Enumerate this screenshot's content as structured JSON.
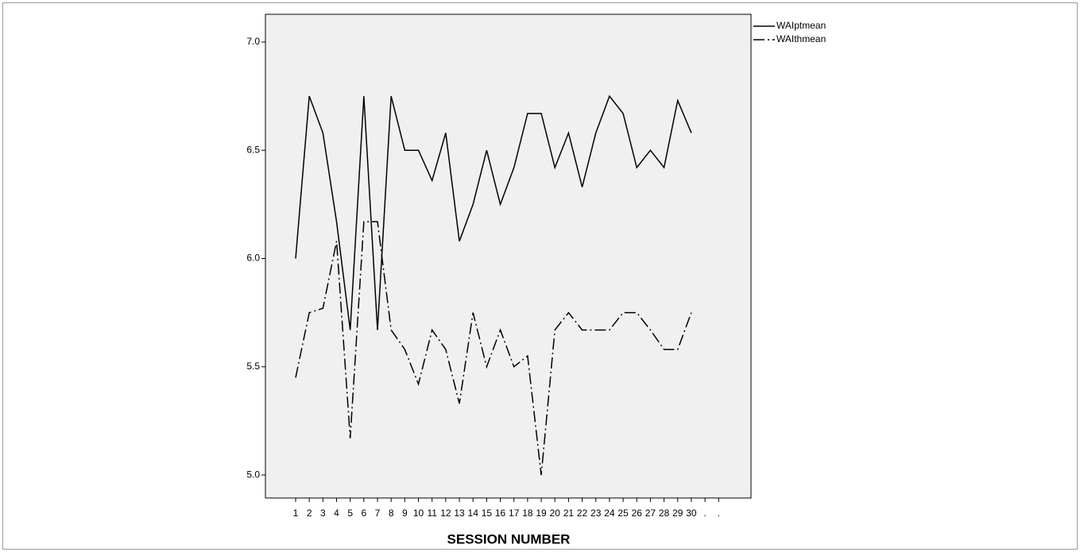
{
  "chart_data": {
    "type": "line",
    "xlabel": "SESSION NUMBER",
    "categories": [
      "1",
      "2",
      "3",
      "4",
      "5",
      "6",
      "7",
      "8",
      "9",
      "10",
      "11",
      "12",
      "13",
      "14",
      "15",
      "16",
      "17",
      "18",
      "19",
      "20",
      "21",
      "22",
      "23",
      "24",
      "25",
      "26",
      "27",
      "28",
      "29",
      "30",
      ".",
      "."
    ],
    "series": [
      {
        "name": "WAIptmean",
        "color": "#000000",
        "dash": "solid",
        "values": [
          6.0,
          6.75,
          6.58,
          6.17,
          5.67,
          6.75,
          5.67,
          6.75,
          6.5,
          6.5,
          6.36,
          6.58,
          6.08,
          6.25,
          6.5,
          6.25,
          6.42,
          6.67,
          6.67,
          6.42,
          6.58,
          6.33,
          6.58,
          6.75,
          6.67,
          6.42,
          6.5,
          6.42,
          6.73,
          6.58,
          null,
          null
        ]
      },
      {
        "name": "WAIthmean",
        "color": "#000000",
        "dash": "dash-dot",
        "values": [
          5.45,
          5.75,
          5.77,
          6.08,
          5.17,
          6.17,
          6.17,
          5.67,
          5.58,
          5.42,
          5.67,
          5.58,
          5.33,
          5.75,
          5.5,
          5.67,
          5.5,
          5.55,
          5.0,
          5.67,
          5.75,
          5.67,
          5.67,
          5.67,
          5.75,
          5.75,
          5.67,
          5.58,
          5.58,
          5.75,
          null,
          null
        ]
      }
    ],
    "ylim": [
      4.894,
      7.128
    ],
    "yticks": [
      {
        "value": 5.0,
        "label": "5.0"
      },
      {
        "value": 5.5,
        "label": "5.5"
      },
      {
        "value": 6.0,
        "label": "6.0"
      },
      {
        "value": 6.5,
        "label": "6.5"
      },
      {
        "value": 7.0,
        "label": "7.0"
      }
    ],
    "legend": "outside-top-right"
  }
}
